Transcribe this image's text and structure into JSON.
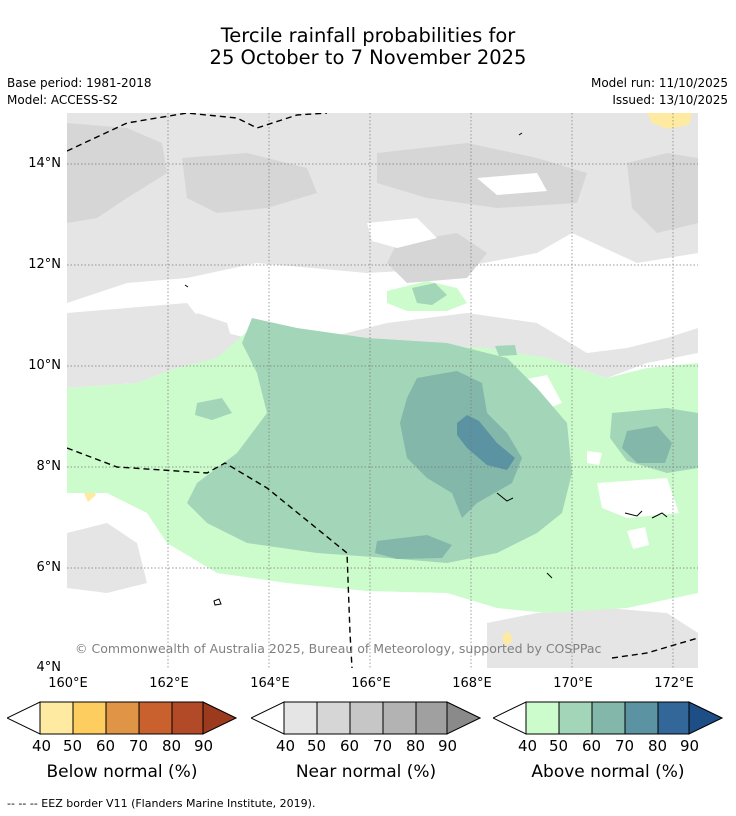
{
  "title": {
    "line1": "Tercile rainfall probabilities for",
    "line2": "25 October to 7 November 2025"
  },
  "meta": {
    "base_period": "Base period: 1981-2018",
    "model": "Model: ACCESS-S2",
    "model_run": "Model run: 11/10/2025",
    "issued": "Issued: 13/10/2025"
  },
  "map": {
    "lat_labels": [
      "14°N",
      "12°N",
      "10°N",
      "8°N",
      "6°N",
      "4°N"
    ],
    "lon_labels": [
      "160°E",
      "162°E",
      "164°E",
      "166°E",
      "168°E",
      "170°E",
      "172°E"
    ],
    "copyright": "© Commonwealth of Australia 2025, Bureau of Meteorology, supported by COSPPac"
  },
  "colorbars": [
    {
      "title": "Below normal (%)",
      "ticks": [
        "40",
        "50",
        "60",
        "70",
        "80",
        "90"
      ],
      "colors": [
        "#ffffff",
        "#feeaa0",
        "#fdcd5f",
        "#e09446",
        "#c9612f",
        "#b34a27",
        "#9c3a1d"
      ]
    },
    {
      "title": "Near normal (%)",
      "ticks": [
        "40",
        "50",
        "60",
        "70",
        "80",
        "90"
      ],
      "colors": [
        "#ffffff",
        "#e5e5e5",
        "#d6d6d6",
        "#c6c6c6",
        "#b3b3b3",
        "#a0a0a0",
        "#8a8a8a"
      ]
    },
    {
      "title": "Above normal (%)",
      "ticks": [
        "40",
        "50",
        "60",
        "70",
        "80",
        "90"
      ],
      "colors": [
        "#ffffff",
        "#ccfccc",
        "#a3d5b8",
        "#82b7aa",
        "#5b93a2",
        "#336699",
        "#1d4f86"
      ]
    }
  ],
  "footer": "--  --  -- EEZ border V11 (Flanders Marine Institute, 2019)."
}
